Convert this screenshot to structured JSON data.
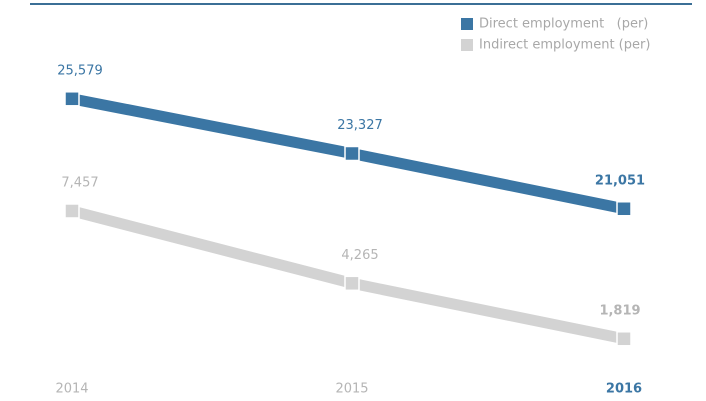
{
  "chart_data": {
    "type": "line",
    "categories": [
      "2014",
      "2015",
      "2016"
    ],
    "series": [
      {
        "name": "Direct employment   (per)",
        "color": "#3b76a4",
        "axis": "y2",
        "values": [
          25579,
          23327,
          21051
        ],
        "value_labels": [
          "25,579",
          "23,327",
          "21,051"
        ]
      },
      {
        "name": "Indirect employment (per)",
        "color": "#d3d3d3",
        "values": [
          7457,
          4265,
          1819
        ],
        "value_labels": [
          "7,457",
          "4,265",
          "1,819"
        ]
      }
    ],
    "ylim": [
      0,
      15000
    ],
    "y2lim": [
      14000,
      28000
    ],
    "legend": "top-right"
  }
}
